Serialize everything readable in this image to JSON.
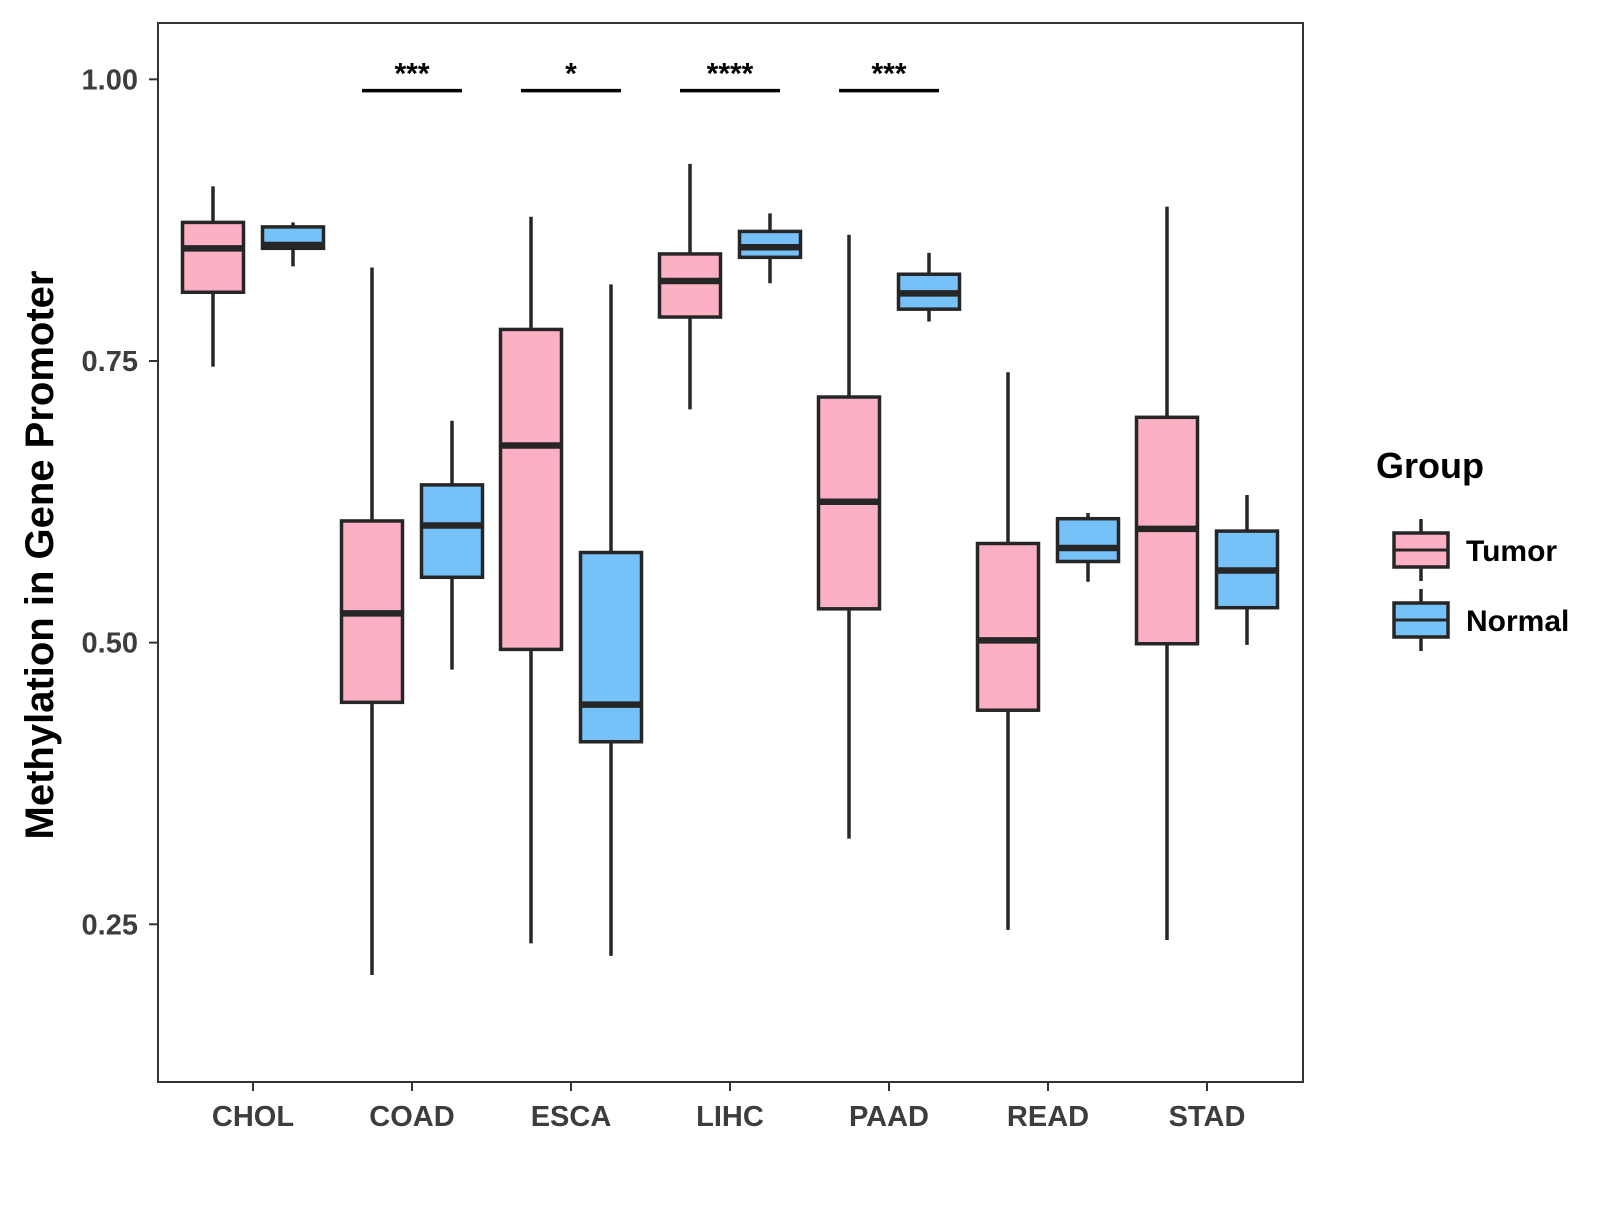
{
  "chart_data": {
    "type": "boxplot",
    "title": "",
    "xlabel": "",
    "ylabel": "Methylation in Gene Promoter",
    "ylim": [
      0.11,
      1.05
    ],
    "yticks": [
      0.25,
      0.5,
      0.75,
      1.0
    ],
    "ytick_labels": [
      "0.25",
      "0.50",
      "0.75",
      "1.00"
    ],
    "grid": false,
    "categories": [
      "CHOL",
      "COAD",
      "ESCA",
      "LIHC",
      "PAAD",
      "READ",
      "STAD"
    ],
    "series": [
      {
        "name": "Tumor",
        "color": "#FBB0C4",
        "boxes": [
          {
            "category": "CHOL",
            "whisker_low": 0.745,
            "q1": 0.811,
            "median": 0.85,
            "q3": 0.873,
            "whisker_high": 0.905
          },
          {
            "category": "COAD",
            "whisker_low": 0.205,
            "q1": 0.447,
            "median": 0.526,
            "q3": 0.608,
            "whisker_high": 0.833
          },
          {
            "category": "ESCA",
            "whisker_low": 0.233,
            "q1": 0.494,
            "median": 0.675,
            "q3": 0.778,
            "whisker_high": 0.878
          },
          {
            "category": "LIHC",
            "whisker_low": 0.707,
            "q1": 0.789,
            "median": 0.821,
            "q3": 0.845,
            "whisker_high": 0.925
          },
          {
            "category": "PAAD",
            "whisker_low": 0.326,
            "q1": 0.53,
            "median": 0.625,
            "q3": 0.718,
            "whisker_high": 0.862
          },
          {
            "category": "READ",
            "whisker_low": 0.245,
            "q1": 0.44,
            "median": 0.502,
            "q3": 0.588,
            "whisker_high": 0.74
          },
          {
            "category": "STAD",
            "whisker_low": 0.236,
            "q1": 0.499,
            "median": 0.601,
            "q3": 0.7,
            "whisker_high": 0.887
          }
        ]
      },
      {
        "name": "Normal",
        "color": "#76C1F8",
        "boxes": [
          {
            "category": "CHOL",
            "whisker_low": 0.834,
            "q1": 0.85,
            "median": 0.853,
            "q3": 0.869,
            "whisker_high": 0.873
          },
          {
            "category": "COAD",
            "whisker_low": 0.476,
            "q1": 0.558,
            "median": 0.604,
            "q3": 0.64,
            "whisker_high": 0.697
          },
          {
            "category": "ESCA",
            "whisker_low": 0.222,
            "q1": 0.412,
            "median": 0.445,
            "q3": 0.58,
            "whisker_high": 0.818
          },
          {
            "category": "LIHC",
            "whisker_low": 0.819,
            "q1": 0.842,
            "median": 0.851,
            "q3": 0.865,
            "whisker_high": 0.881
          },
          {
            "category": "PAAD",
            "whisker_low": 0.785,
            "q1": 0.796,
            "median": 0.81,
            "q3": 0.827,
            "whisker_high": 0.846
          },
          {
            "category": "READ",
            "whisker_low": 0.554,
            "q1": 0.572,
            "median": 0.584,
            "q3": 0.61,
            "whisker_high": 0.615
          },
          {
            "category": "STAD",
            "whisker_low": 0.498,
            "q1": 0.531,
            "median": 0.564,
            "q3": 0.599,
            "whisker_high": 0.631
          }
        ]
      }
    ],
    "significance": [
      {
        "category": "COAD",
        "label": "***",
        "y": 0.99
      },
      {
        "category": "ESCA",
        "label": "*",
        "y": 0.99
      },
      {
        "category": "LIHC",
        "label": "****",
        "y": 0.99
      },
      {
        "category": "PAAD",
        "label": "***",
        "y": 0.99
      }
    ],
    "legend": {
      "title": "Group",
      "position": "right",
      "entries": [
        "Tumor",
        "Normal"
      ]
    }
  }
}
